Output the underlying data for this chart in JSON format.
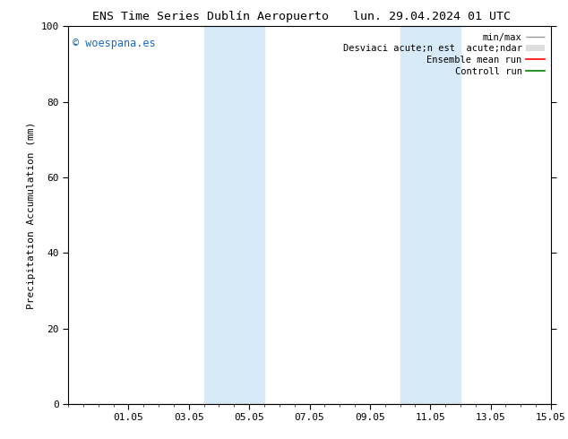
{
  "title_left": "ENS Time Series Dublín Aeropuerto",
  "title_right": "lun. 29.04.2024 01 UTC",
  "ylabel": "Precipitation Accumulation (mm)",
  "watermark": "© woespana.es",
  "ylim": [
    0,
    100
  ],
  "xtick_labels": [
    "01.05",
    "03.05",
    "05.05",
    "07.05",
    "09.05",
    "11.05",
    "13.05",
    "15.05"
  ],
  "xtick_positions": [
    2,
    4,
    6,
    8,
    10,
    12,
    14,
    16
  ],
  "ytick_labels": [
    "0",
    "20",
    "40",
    "60",
    "80",
    "100"
  ],
  "ytick_positions": [
    0,
    20,
    40,
    60,
    80,
    100
  ],
  "shaded_bands": [
    {
      "x_start": 4.5,
      "x_end": 6.5,
      "color": "#d6eaf8",
      "alpha": 1.0
    },
    {
      "x_start": 11.0,
      "x_end": 13.0,
      "color": "#d6eaf8",
      "alpha": 1.0
    }
  ],
  "legend_labels": [
    "min/max",
    "Desviaci acute;n est  acute;ndar",
    "Ensemble mean run",
    "Controll run"
  ],
  "legend_colors": [
    "#999999",
    "#cccccc",
    "red",
    "green"
  ],
  "background_color": "#ffffff",
  "watermark_color": "#1a6abf",
  "title_fontsize": 9.5,
  "axis_label_fontsize": 8,
  "tick_fontsize": 8,
  "legend_fontsize": 7.5,
  "xlim": [
    0,
    16
  ]
}
